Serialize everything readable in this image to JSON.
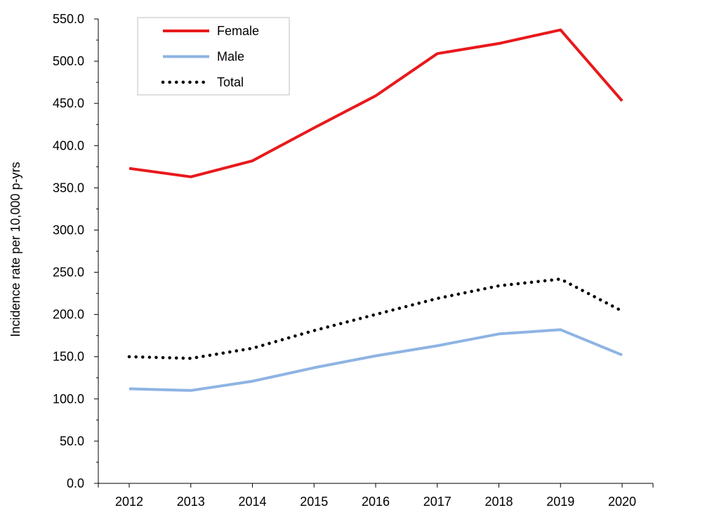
{
  "chart_data": {
    "type": "line",
    "title": "",
    "xlabel": "",
    "ylabel": "Incidence rate per 10,000 p-yrs",
    "x": [
      "2012",
      "2013",
      "2014",
      "2015",
      "2016",
      "2017",
      "2018",
      "2019",
      "2020"
    ],
    "ylim": [
      0,
      550
    ],
    "y_ticks": [
      "0.0",
      "50.0",
      "100.0",
      "150.0",
      "200.0",
      "250.0",
      "300.0",
      "350.0",
      "400.0",
      "450.0",
      "500.0",
      "550.0"
    ],
    "grid": false,
    "legend_position": "top-left",
    "series": [
      {
        "name": "Female",
        "color": "#e8191c",
        "style": "solid",
        "values": [
          373,
          363,
          382,
          421,
          459,
          509,
          521,
          537,
          453
        ]
      },
      {
        "name": "Male",
        "color": "#8eb4e3",
        "style": "solid",
        "values": [
          112,
          110,
          121,
          137,
          151,
          163,
          177,
          182,
          152
        ]
      },
      {
        "name": "Total",
        "color": "#000000",
        "style": "dotted",
        "values": [
          150,
          148,
          160,
          181,
          200,
          219,
          234,
          242,
          204
        ]
      }
    ]
  }
}
